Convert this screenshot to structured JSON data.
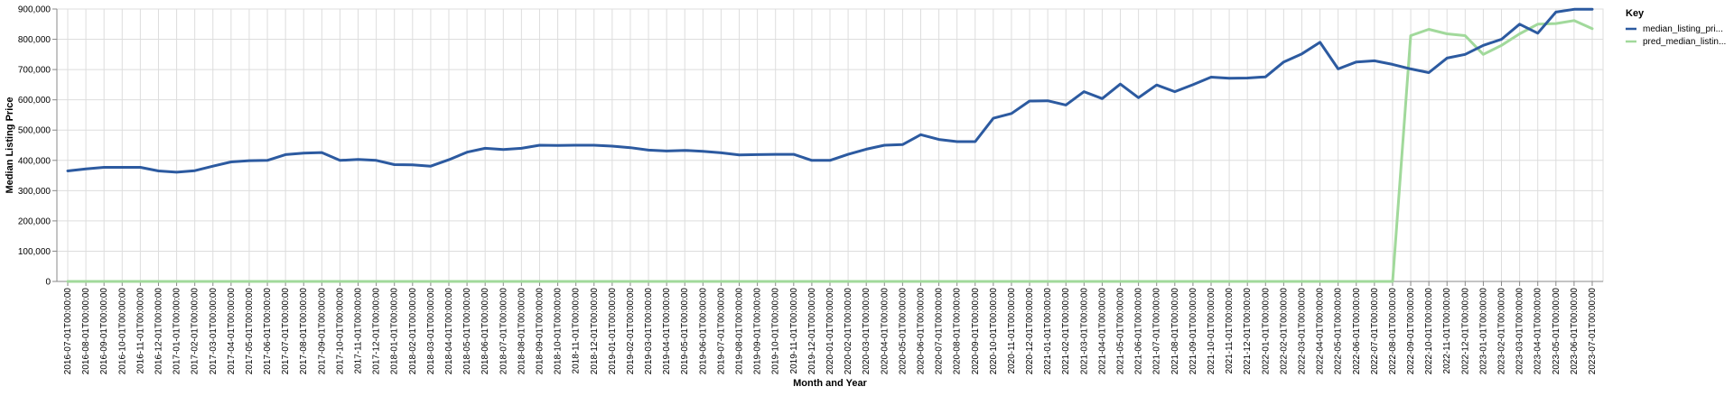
{
  "chart_data": {
    "type": "line",
    "xlabel": "Month and Year",
    "ylabel": "Median Listing Price",
    "ylim": [
      0,
      900000
    ],
    "yticks": [
      0,
      100000,
      200000,
      300000,
      400000,
      500000,
      600000,
      700000,
      800000,
      900000
    ],
    "ytick_labels": [
      "0",
      "100,000",
      "200,000",
      "300,000",
      "400,000",
      "500,000",
      "600,000",
      "700,000",
      "800,000",
      "900,000"
    ],
    "grid": true,
    "legend": {
      "title": "Key",
      "placement": "right"
    },
    "x": [
      "2016-07-01T00:00:00",
      "2016-08-01T00:00:00",
      "2016-09-01T00:00:00",
      "2016-10-01T00:00:00",
      "2016-11-01T00:00:00",
      "2016-12-01T00:00:00",
      "2017-01-01T00:00:00",
      "2017-02-01T00:00:00",
      "2017-03-01T00:00:00",
      "2017-04-01T00:00:00",
      "2017-05-01T00:00:00",
      "2017-06-01T00:00:00",
      "2017-07-01T00:00:00",
      "2017-08-01T00:00:00",
      "2017-09-01T00:00:00",
      "2017-10-01T00:00:00",
      "2017-11-01T00:00:00",
      "2017-12-01T00:00:00",
      "2018-01-01T00:00:00",
      "2018-02-01T00:00:00",
      "2018-03-01T00:00:00",
      "2018-04-01T00:00:00",
      "2018-05-01T00:00:00",
      "2018-06-01T00:00:00",
      "2018-07-01T00:00:00",
      "2018-08-01T00:00:00",
      "2018-09-01T00:00:00",
      "2018-10-01T00:00:00",
      "2018-11-01T00:00:00",
      "2018-12-01T00:00:00",
      "2019-01-01T00:00:00",
      "2019-02-01T00:00:00",
      "2019-03-01T00:00:00",
      "2019-04-01T00:00:00",
      "2019-05-01T00:00:00",
      "2019-06-01T00:00:00",
      "2019-07-01T00:00:00",
      "2019-08-01T00:00:00",
      "2019-09-01T00:00:00",
      "2019-10-01T00:00:00",
      "2019-11-01T00:00:00",
      "2019-12-01T00:00:00",
      "2020-01-01T00:00:00",
      "2020-02-01T00:00:00",
      "2020-03-01T00:00:00",
      "2020-04-01T00:00:00",
      "2020-05-01T00:00:00",
      "2020-06-01T00:00:00",
      "2020-07-01T00:00:00",
      "2020-08-01T00:00:00",
      "2020-09-01T00:00:00",
      "2020-10-01T00:00:00",
      "2020-11-01T00:00:00",
      "2020-12-01T00:00:00",
      "2021-01-01T00:00:00",
      "2021-02-01T00:00:00",
      "2021-03-01T00:00:00",
      "2021-04-01T00:00:00",
      "2021-05-01T00:00:00",
      "2021-06-01T00:00:00",
      "2021-07-01T00:00:00",
      "2021-08-01T00:00:00",
      "2021-09-01T00:00:00",
      "2021-10-01T00:00:00",
      "2021-11-01T00:00:00",
      "2021-12-01T00:00:00",
      "2022-01-01T00:00:00",
      "2022-02-01T00:00:00",
      "2022-03-01T00:00:00",
      "2022-04-01T00:00:00",
      "2022-05-01T00:00:00",
      "2022-06-01T00:00:00",
      "2022-07-01T00:00:00",
      "2022-08-01T00:00:00",
      "2022-09-01T00:00:00",
      "2022-10-01T00:00:00",
      "2022-11-01T00:00:00",
      "2022-12-01T00:00:00",
      "2023-01-01T00:00:00",
      "2023-02-01T00:00:00",
      "2023-03-01T00:00:00",
      "2023-04-01T00:00:00",
      "2023-05-01T00:00:00",
      "2023-06-01T00:00:00",
      "2023-07-01T00:00:00"
    ],
    "series": [
      {
        "name": "median_listing_pri...",
        "color": "#2c5aa0",
        "values": [
          365000,
          372000,
          377000,
          377000,
          377000,
          365000,
          361000,
          366000,
          381000,
          395000,
          399000,
          400000,
          419000,
          424000,
          426000,
          400000,
          403000,
          400000,
          386000,
          385000,
          381000,
          402000,
          427000,
          440000,
          436000,
          440000,
          450000,
          449000,
          450000,
          450000,
          447000,
          442000,
          434000,
          431000,
          433000,
          430000,
          425000,
          418000,
          419000,
          420000,
          420000,
          400000,
          400000,
          420000,
          437000,
          450000,
          452000,
          485000,
          469000,
          462000,
          462000,
          539000,
          555000,
          596000,
          597000,
          583000,
          627000,
          604000,
          652000,
          607000,
          649000,
          627000,
          650000,
          675000,
          671000,
          672000,
          676000,
          725000,
          752000,
          790000,
          702000,
          725000,
          729000,
          717000,
          702000,
          690000,
          738000,
          750000,
          780000,
          800000,
          850000,
          820000,
          890000,
          899000,
          899000
        ]
      },
      {
        "name": "pred_median_listin...",
        "color": "#a1d99b",
        "values": [
          0,
          0,
          0,
          0,
          0,
          0,
          0,
          0,
          0,
          0,
          0,
          0,
          0,
          0,
          0,
          0,
          0,
          0,
          0,
          0,
          0,
          0,
          0,
          0,
          0,
          0,
          0,
          0,
          0,
          0,
          0,
          0,
          0,
          0,
          0,
          0,
          0,
          0,
          0,
          0,
          0,
          0,
          0,
          0,
          0,
          0,
          0,
          0,
          0,
          0,
          0,
          0,
          0,
          0,
          0,
          0,
          0,
          0,
          0,
          0,
          0,
          0,
          0,
          0,
          0,
          0,
          0,
          0,
          0,
          0,
          0,
          0,
          0,
          0,
          812000,
          833000,
          818000,
          812000,
          750000,
          780000,
          818000,
          850000,
          852000,
          862000,
          835000
        ]
      }
    ]
  }
}
